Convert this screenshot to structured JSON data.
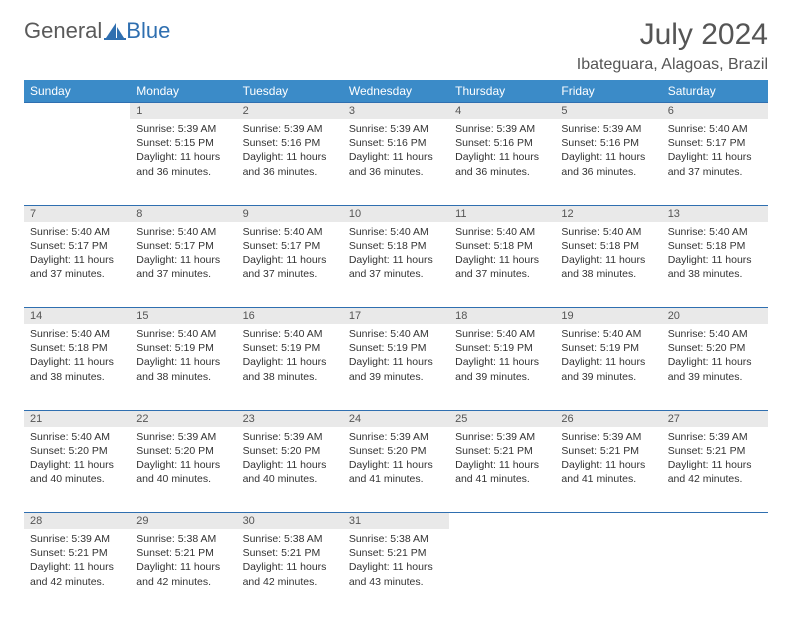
{
  "brand": {
    "general": "General",
    "blue": "Blue"
  },
  "title": "July 2024",
  "location": "Ibateguara, Alagoas, Brazil",
  "colors": {
    "header_bg": "#3b8bc8",
    "header_text": "#ffffff",
    "daynum_bg": "#e9e9e9",
    "rule": "#2f6fb0",
    "body_text": "#333333",
    "title_text": "#555555"
  },
  "weekdays": [
    "Sunday",
    "Monday",
    "Tuesday",
    "Wednesday",
    "Thursday",
    "Friday",
    "Saturday"
  ],
  "weeks": [
    [
      null,
      {
        "n": "1",
        "sunrise": "Sunrise: 5:39 AM",
        "sunset": "Sunset: 5:15 PM",
        "daylight": "Daylight: 11 hours and 36 minutes."
      },
      {
        "n": "2",
        "sunrise": "Sunrise: 5:39 AM",
        "sunset": "Sunset: 5:16 PM",
        "daylight": "Daylight: 11 hours and 36 minutes."
      },
      {
        "n": "3",
        "sunrise": "Sunrise: 5:39 AM",
        "sunset": "Sunset: 5:16 PM",
        "daylight": "Daylight: 11 hours and 36 minutes."
      },
      {
        "n": "4",
        "sunrise": "Sunrise: 5:39 AM",
        "sunset": "Sunset: 5:16 PM",
        "daylight": "Daylight: 11 hours and 36 minutes."
      },
      {
        "n": "5",
        "sunrise": "Sunrise: 5:39 AM",
        "sunset": "Sunset: 5:16 PM",
        "daylight": "Daylight: 11 hours and 36 minutes."
      },
      {
        "n": "6",
        "sunrise": "Sunrise: 5:40 AM",
        "sunset": "Sunset: 5:17 PM",
        "daylight": "Daylight: 11 hours and 37 minutes."
      }
    ],
    [
      {
        "n": "7",
        "sunrise": "Sunrise: 5:40 AM",
        "sunset": "Sunset: 5:17 PM",
        "daylight": "Daylight: 11 hours and 37 minutes."
      },
      {
        "n": "8",
        "sunrise": "Sunrise: 5:40 AM",
        "sunset": "Sunset: 5:17 PM",
        "daylight": "Daylight: 11 hours and 37 minutes."
      },
      {
        "n": "9",
        "sunrise": "Sunrise: 5:40 AM",
        "sunset": "Sunset: 5:17 PM",
        "daylight": "Daylight: 11 hours and 37 minutes."
      },
      {
        "n": "10",
        "sunrise": "Sunrise: 5:40 AM",
        "sunset": "Sunset: 5:18 PM",
        "daylight": "Daylight: 11 hours and 37 minutes."
      },
      {
        "n": "11",
        "sunrise": "Sunrise: 5:40 AM",
        "sunset": "Sunset: 5:18 PM",
        "daylight": "Daylight: 11 hours and 37 minutes."
      },
      {
        "n": "12",
        "sunrise": "Sunrise: 5:40 AM",
        "sunset": "Sunset: 5:18 PM",
        "daylight": "Daylight: 11 hours and 38 minutes."
      },
      {
        "n": "13",
        "sunrise": "Sunrise: 5:40 AM",
        "sunset": "Sunset: 5:18 PM",
        "daylight": "Daylight: 11 hours and 38 minutes."
      }
    ],
    [
      {
        "n": "14",
        "sunrise": "Sunrise: 5:40 AM",
        "sunset": "Sunset: 5:18 PM",
        "daylight": "Daylight: 11 hours and 38 minutes."
      },
      {
        "n": "15",
        "sunrise": "Sunrise: 5:40 AM",
        "sunset": "Sunset: 5:19 PM",
        "daylight": "Daylight: 11 hours and 38 minutes."
      },
      {
        "n": "16",
        "sunrise": "Sunrise: 5:40 AM",
        "sunset": "Sunset: 5:19 PM",
        "daylight": "Daylight: 11 hours and 38 minutes."
      },
      {
        "n": "17",
        "sunrise": "Sunrise: 5:40 AM",
        "sunset": "Sunset: 5:19 PM",
        "daylight": "Daylight: 11 hours and 39 minutes."
      },
      {
        "n": "18",
        "sunrise": "Sunrise: 5:40 AM",
        "sunset": "Sunset: 5:19 PM",
        "daylight": "Daylight: 11 hours and 39 minutes."
      },
      {
        "n": "19",
        "sunrise": "Sunrise: 5:40 AM",
        "sunset": "Sunset: 5:19 PM",
        "daylight": "Daylight: 11 hours and 39 minutes."
      },
      {
        "n": "20",
        "sunrise": "Sunrise: 5:40 AM",
        "sunset": "Sunset: 5:20 PM",
        "daylight": "Daylight: 11 hours and 39 minutes."
      }
    ],
    [
      {
        "n": "21",
        "sunrise": "Sunrise: 5:40 AM",
        "sunset": "Sunset: 5:20 PM",
        "daylight": "Daylight: 11 hours and 40 minutes."
      },
      {
        "n": "22",
        "sunrise": "Sunrise: 5:39 AM",
        "sunset": "Sunset: 5:20 PM",
        "daylight": "Daylight: 11 hours and 40 minutes."
      },
      {
        "n": "23",
        "sunrise": "Sunrise: 5:39 AM",
        "sunset": "Sunset: 5:20 PM",
        "daylight": "Daylight: 11 hours and 40 minutes."
      },
      {
        "n": "24",
        "sunrise": "Sunrise: 5:39 AM",
        "sunset": "Sunset: 5:20 PM",
        "daylight": "Daylight: 11 hours and 41 minutes."
      },
      {
        "n": "25",
        "sunrise": "Sunrise: 5:39 AM",
        "sunset": "Sunset: 5:21 PM",
        "daylight": "Daylight: 11 hours and 41 minutes."
      },
      {
        "n": "26",
        "sunrise": "Sunrise: 5:39 AM",
        "sunset": "Sunset: 5:21 PM",
        "daylight": "Daylight: 11 hours and 41 minutes."
      },
      {
        "n": "27",
        "sunrise": "Sunrise: 5:39 AM",
        "sunset": "Sunset: 5:21 PM",
        "daylight": "Daylight: 11 hours and 42 minutes."
      }
    ],
    [
      {
        "n": "28",
        "sunrise": "Sunrise: 5:39 AM",
        "sunset": "Sunset: 5:21 PM",
        "daylight": "Daylight: 11 hours and 42 minutes."
      },
      {
        "n": "29",
        "sunrise": "Sunrise: 5:38 AM",
        "sunset": "Sunset: 5:21 PM",
        "daylight": "Daylight: 11 hours and 42 minutes."
      },
      {
        "n": "30",
        "sunrise": "Sunrise: 5:38 AM",
        "sunset": "Sunset: 5:21 PM",
        "daylight": "Daylight: 11 hours and 42 minutes."
      },
      {
        "n": "31",
        "sunrise": "Sunrise: 5:38 AM",
        "sunset": "Sunset: 5:21 PM",
        "daylight": "Daylight: 11 hours and 43 minutes."
      },
      null,
      null,
      null
    ]
  ]
}
